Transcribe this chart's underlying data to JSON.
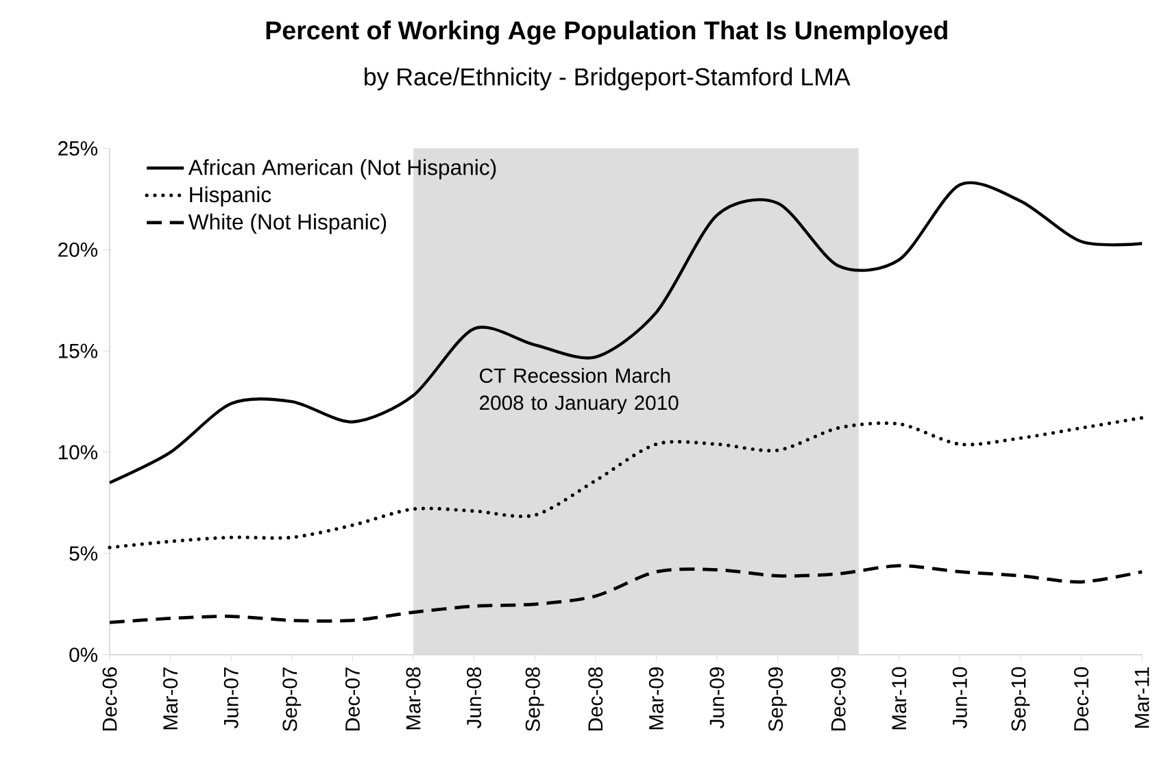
{
  "chart_data": {
    "type": "line",
    "title": "Percent of Working Age Population That Is Unemployed",
    "subtitle": "by Race/Ethnicity - Bridgeport-Stamford LMA",
    "x": [
      "2006-12",
      "2007-03",
      "2007-06",
      "2007-09",
      "2007-12",
      "2008-03",
      "2008-06",
      "2008-09",
      "2008-12",
      "2009-03",
      "2009-06",
      "2009-09",
      "2009-12",
      "2010-03",
      "2010-06",
      "2010-09",
      "2010-12",
      "2011-03"
    ],
    "series": [
      {
        "name": "African American (Not Hispanic)",
        "color": "#000000",
        "line_style": "solid",
        "values": [
          8.5,
          10.0,
          12.4,
          12.5,
          11.5,
          12.8,
          16.1,
          15.3,
          14.7,
          16.9,
          21.7,
          22.3,
          19.2,
          19.5,
          23.2,
          22.4,
          20.4,
          20.3
        ]
      },
      {
        "name": "Hispanic",
        "color": "#000000",
        "line_style": "dotted",
        "values": [
          5.3,
          5.6,
          5.8,
          5.8,
          6.4,
          7.2,
          7.1,
          6.9,
          8.6,
          10.4,
          10.4,
          10.1,
          11.2,
          11.4,
          10.4,
          10.7,
          11.2,
          11.7
        ]
      },
      {
        "name": "White (Not Hispanic)",
        "color": "#000000",
        "line_style": "dashed",
        "values": [
          1.6,
          1.8,
          1.9,
          1.7,
          1.7,
          2.1,
          2.4,
          2.5,
          2.9,
          4.1,
          4.2,
          3.9,
          4.0,
          4.4,
          4.1,
          3.9,
          3.6,
          4.1
        ]
      }
    ],
    "xlim": [
      "2006-12",
      "2011-03"
    ],
    "xticks": [
      {
        "value": "2006-12",
        "label": "Dec-06"
      },
      {
        "value": "2007-03",
        "label": "Mar-07"
      },
      {
        "value": "2007-06",
        "label": "Jun-07"
      },
      {
        "value": "2007-09",
        "label": "Sep-07"
      },
      {
        "value": "2007-12",
        "label": "Dec-07"
      },
      {
        "value": "2008-03",
        "label": "Mar-08"
      },
      {
        "value": "2008-06",
        "label": "Jun-08"
      },
      {
        "value": "2008-09",
        "label": "Sep-08"
      },
      {
        "value": "2008-12",
        "label": "Dec-08"
      },
      {
        "value": "2009-03",
        "label": "Mar-09"
      },
      {
        "value": "2009-06",
        "label": "Jun-09"
      },
      {
        "value": "2009-09",
        "label": "Sep-09"
      },
      {
        "value": "2009-12",
        "label": "Dec-09"
      },
      {
        "value": "2010-03",
        "label": "Mar-10"
      },
      {
        "value": "2010-06",
        "label": "Jun-10"
      },
      {
        "value": "2010-09",
        "label": "Sep-10"
      },
      {
        "value": "2010-12",
        "label": "Dec-10"
      },
      {
        "value": "2011-03",
        "label": "Mar-11"
      }
    ],
    "ylim": [
      0,
      25
    ],
    "yticks": [
      {
        "value": 0,
        "label": "0%"
      },
      {
        "value": 5,
        "label": "5%"
      },
      {
        "value": 10,
        "label": "10%"
      },
      {
        "value": 15,
        "label": "15%"
      },
      {
        "value": 20,
        "label": "20%"
      },
      {
        "value": 25,
        "label": "25%"
      }
    ],
    "bands": [
      {
        "axis": "x",
        "from": "2008-03",
        "to": "2010-01",
        "label": "CT Recession March 2008 to January 2010",
        "color": "#dddddd"
      }
    ],
    "legend": "top left"
  }
}
